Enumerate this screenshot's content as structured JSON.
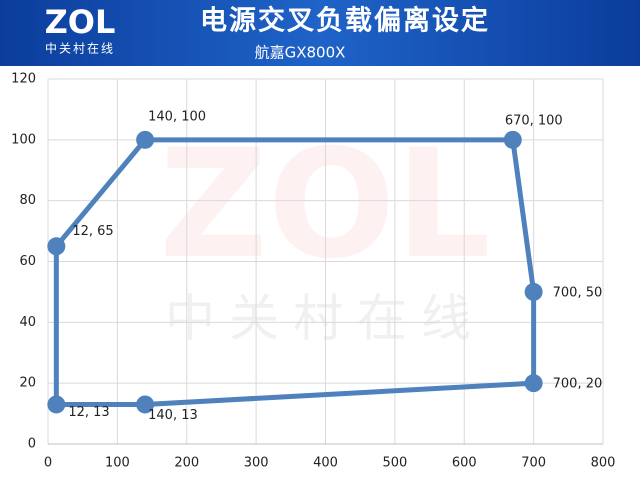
{
  "header": {
    "logo": "ZOL",
    "logo_sub": "中关村在线"
  },
  "chart_data": {
    "type": "line",
    "title": "电源交叉负载偏离设定",
    "subtitle": "航嘉GX800X",
    "closed": true,
    "grid": true,
    "markers": true,
    "series": [
      {
        "color": "#4f81bd",
        "x": [
          12,
          140,
          670,
          700,
          700,
          140,
          12
        ],
        "values": [
          65,
          100,
          100,
          50,
          20,
          13,
          13
        ],
        "value_labels": [
          "12, 65",
          "140, 100",
          "670, 100",
          "700, 50",
          "700, 20",
          "140, 13",
          "12, 13"
        ]
      }
    ],
    "xlim": [
      0,
      800
    ],
    "xticks": [
      0,
      100,
      200,
      300,
      400,
      500,
      600,
      700,
      800
    ],
    "ylim": [
      0,
      120
    ],
    "yticks": [
      0,
      20,
      40,
      60,
      80,
      100,
      120
    ]
  }
}
